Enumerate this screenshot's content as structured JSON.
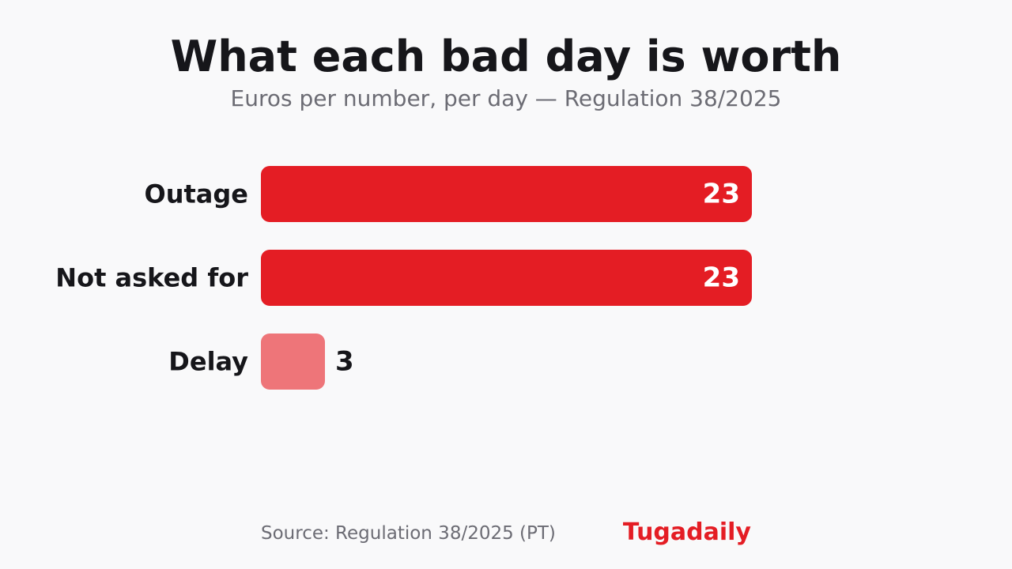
{
  "chart_data": {
    "type": "bar",
    "orientation": "horizontal",
    "title": "What each bad day is worth",
    "subtitle": "Euros per number, per day — Regulation 38/2025",
    "categories": [
      "Outage",
      "Not asked for",
      "Delay"
    ],
    "values": [
      23,
      23,
      3
    ],
    "bar_colors": [
      "#e41d24",
      "#e41d24",
      "#ee7579"
    ],
    "value_label_colors": [
      "#ffffff",
      "#ffffff",
      "#16161a"
    ],
    "value_label_position": [
      "inside",
      "inside",
      "outside"
    ],
    "xlim": [
      0,
      23
    ],
    "grid": false,
    "legend": "none"
  },
  "footer": {
    "source": "Source: Regulation 38/2025 (PT)",
    "brand": "Tugadaily",
    "brand_color": "#e41d24"
  }
}
